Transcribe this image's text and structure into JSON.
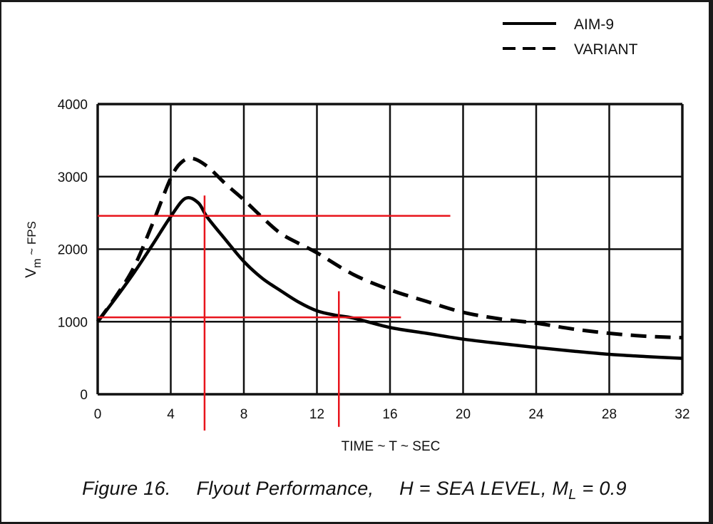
{
  "chart_data": {
    "type": "line",
    "xlabel": "TIME ~ T ~ SEC",
    "ylabel": {
      "main": "V",
      "sub": "m",
      "suffix": " ~ FPS"
    },
    "xlim": [
      0,
      32
    ],
    "ylim": [
      0,
      4000
    ],
    "x_ticks": [
      0,
      4,
      8,
      12,
      16,
      20,
      24,
      28,
      32
    ],
    "y_ticks": [
      0,
      1000,
      2000,
      3000,
      4000
    ],
    "grid": true,
    "legend_position": "top-right",
    "series": [
      {
        "name": "AIM-9",
        "style": "solid",
        "x": [
          0,
          1,
          2,
          3,
          4,
          4.8,
          5.5,
          6,
          7,
          8,
          9,
          10,
          11,
          12,
          13,
          14,
          16,
          18,
          20,
          22,
          24,
          26,
          28,
          30,
          32
        ],
        "y": [
          1000,
          1330,
          1680,
          2060,
          2450,
          2700,
          2640,
          2440,
          2130,
          1830,
          1600,
          1430,
          1270,
          1150,
          1090,
          1050,
          920,
          840,
          760,
          700,
          645,
          595,
          550,
          520,
          495
        ]
      },
      {
        "name": "VARIANT",
        "style": "dashed",
        "x": [
          0,
          1,
          2,
          3,
          4,
          4.6,
          5.2,
          6,
          7,
          8,
          9,
          10,
          11,
          12,
          14,
          16,
          18,
          20,
          22,
          24,
          26,
          28,
          30,
          32
        ],
        "y": [
          1000,
          1350,
          1760,
          2350,
          2980,
          3200,
          3250,
          3140,
          2900,
          2680,
          2440,
          2220,
          2080,
          1950,
          1650,
          1440,
          1280,
          1130,
          1040,
          980,
          900,
          840,
          800,
          780
        ]
      }
    ],
    "annotations": {
      "color": "#e8141c",
      "lines": [
        {
          "orientation": "horizontal",
          "value": 2460,
          "from": 0,
          "to": 19.3
        },
        {
          "orientation": "horizontal",
          "value": 1060,
          "from": 0,
          "to": 16.6
        },
        {
          "orientation": "vertical",
          "value": 5.85,
          "from": -500,
          "to": 2740
        },
        {
          "orientation": "vertical",
          "value": 13.2,
          "from": -450,
          "to": 1420
        }
      ]
    }
  },
  "caption": {
    "figure_label": "Figure 16.",
    "title": "Flyout Performance,",
    "condition": "H = SEA LEVEL, M",
    "condition_sub": "L",
    "condition_suffix": " = 0.9"
  }
}
